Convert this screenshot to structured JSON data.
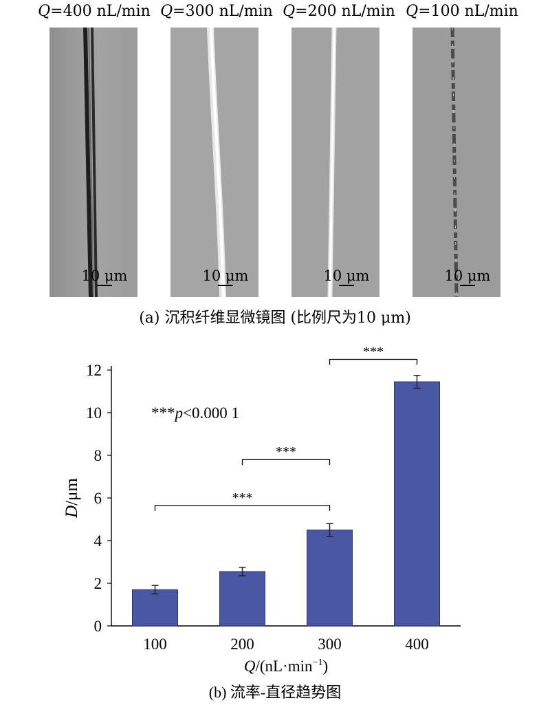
{
  "panel_a": {
    "images": [
      {
        "title_var": "Q",
        "title_rest": "=400 nL/min",
        "scale": "10 μm",
        "fiber": "dark"
      },
      {
        "title_var": "Q",
        "title_rest": "=300 nL/min",
        "scale": "10 μm",
        "fiber": "bright"
      },
      {
        "title_var": "Q",
        "title_rest": "=200 nL/min",
        "scale": "10 μm",
        "fiber": "bright-thin"
      },
      {
        "title_var": "Q",
        "title_rest": "=100 nL/min",
        "scale": "10 μm",
        "fiber": "dashed"
      }
    ],
    "caption": "(a) 沉积纤维显微镜图 (比例尺为10 μm)"
  },
  "panel_b": {
    "caption": "(b) 流率-直径趋势图"
  },
  "colors": {
    "bar": "#4a57a3",
    "bar_edge": "#2c3578",
    "micro_bg": "#9a9a9a"
  },
  "chart_data": {
    "type": "bar",
    "categories": [
      "100",
      "200",
      "300",
      "400"
    ],
    "values": [
      1.7,
      2.55,
      4.5,
      11.45
    ],
    "errors": [
      0.2,
      0.2,
      0.3,
      0.3
    ],
    "ylim": [
      0,
      12
    ],
    "yticks": [
      "0",
      "2",
      "4",
      "6",
      "8",
      "10",
      "12"
    ],
    "ylabel_var": "D",
    "ylabel_unit": "/μm",
    "xlabel_var": "Q",
    "xlabel_unit": "/(nL·min",
    "xlabel_sup": "−1",
    "xlabel_close": ")",
    "annotation_stars": "***",
    "annotation_p": "p",
    "annotation_rest": "<0.000 1",
    "significance": [
      {
        "from": 0,
        "to": 2,
        "label": "***",
        "y": 5.65
      },
      {
        "from": 1,
        "to": 2,
        "label": "***",
        "y": 7.8
      },
      {
        "from": 2,
        "to": 3,
        "label": "***",
        "y": 12.5
      }
    ]
  }
}
